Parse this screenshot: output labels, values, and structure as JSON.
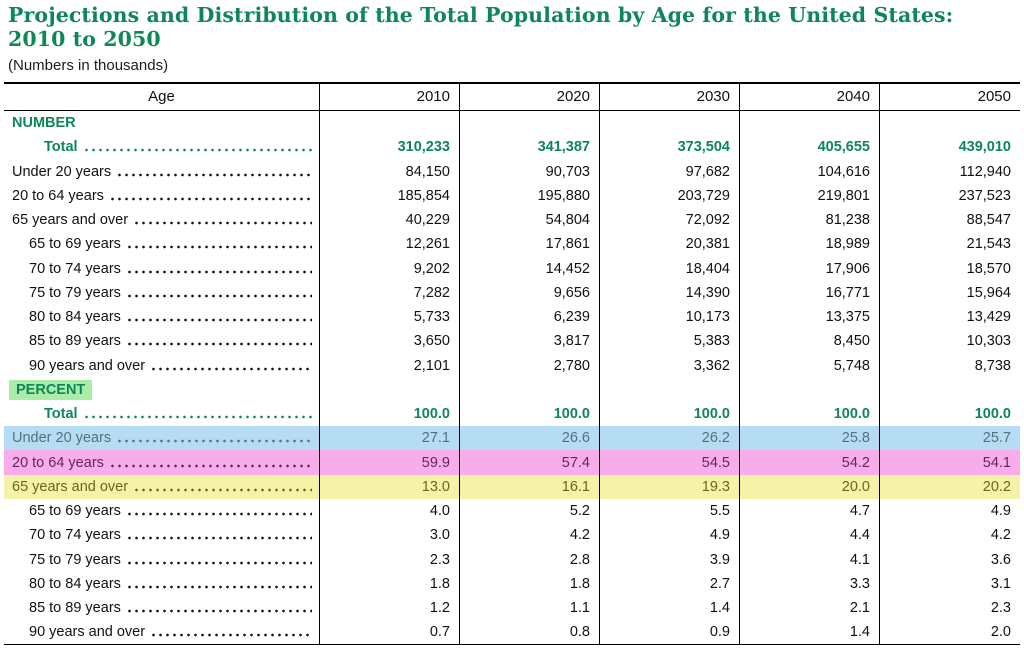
{
  "page": {
    "title_line1": "Projections and Distribution of the Total Population by Age for the United States:",
    "title_line2": "2010 to 2050",
    "subtitle": "(Numbers in thousands)"
  },
  "colors": {
    "green": "#0e8657",
    "band-green": "#a9eda9",
    "band-blue": "#b5dcf3",
    "band-pink": "#f9aceb",
    "band-yellow": "#f6f2a7",
    "text-blue": "#54707e",
    "text-pink": "#6e2160",
    "text-yellow": "#68671e",
    "text-body": "#111111",
    "border": "#000000"
  },
  "table": {
    "columns": [
      "Age",
      "2010",
      "2020",
      "2030",
      "2040",
      "2050"
    ],
    "rows": [
      {
        "label": "NUMBER",
        "style": "section",
        "values": []
      },
      {
        "label": "Total",
        "style": "total",
        "values": [
          "310,233",
          "341,387",
          "373,504",
          "405,655",
          "439,010"
        ]
      },
      {
        "label": "Under 20 years",
        "style": "top",
        "values": [
          "84,150",
          "90,703",
          "97,682",
          "104,616",
          "112,940"
        ]
      },
      {
        "label": "20 to 64 years",
        "style": "top",
        "values": [
          "185,854",
          "195,880",
          "203,729",
          "219,801",
          "237,523"
        ]
      },
      {
        "label": "65 years and over",
        "style": "top",
        "values": [
          "40,229",
          "54,804",
          "72,092",
          "81,238",
          "88,547"
        ]
      },
      {
        "label": "65 to 69 years",
        "style": "sub",
        "values": [
          "12,261",
          "17,861",
          "20,381",
          "18,989",
          "21,543"
        ]
      },
      {
        "label": "70 to 74 years",
        "style": "sub",
        "values": [
          "9,202",
          "14,452",
          "18,404",
          "17,906",
          "18,570"
        ]
      },
      {
        "label": "75 to 79 years",
        "style": "sub",
        "values": [
          "7,282",
          "9,656",
          "14,390",
          "16,771",
          "15,964"
        ]
      },
      {
        "label": "80 to 84 years",
        "style": "sub",
        "values": [
          "5,733",
          "6,239",
          "10,173",
          "13,375",
          "13,429"
        ]
      },
      {
        "label": "85 to 89 years",
        "style": "sub",
        "values": [
          "3,650",
          "3,817",
          "5,383",
          "8,450",
          "10,303"
        ]
      },
      {
        "label": "90 years and over",
        "style": "sub",
        "values": [
          "2,101",
          "2,780",
          "3,362",
          "5,748",
          "8,738"
        ]
      },
      {
        "label": "PERCENT",
        "style": "section",
        "label_highlight": true,
        "values": []
      },
      {
        "label": "Total",
        "style": "total",
        "values": [
          "100.0",
          "100.0",
          "100.0",
          "100.0",
          "100.0"
        ]
      },
      {
        "label": "Under 20 years",
        "style": "top",
        "highlight": "blue",
        "values": [
          "27.1",
          "26.6",
          "26.2",
          "25.8",
          "25.7"
        ]
      },
      {
        "label": "20 to 64 years",
        "style": "top",
        "highlight": "pink",
        "values": [
          "59.9",
          "57.4",
          "54.5",
          "54.2",
          "54.1"
        ]
      },
      {
        "label": "65 years and over",
        "style": "top",
        "highlight": "yellow",
        "values": [
          "13.0",
          "16.1",
          "19.3",
          "20.0",
          "20.2"
        ]
      },
      {
        "label": "65 to 69 years",
        "style": "sub",
        "values": [
          "4.0",
          "5.2",
          "5.5",
          "4.7",
          "4.9"
        ]
      },
      {
        "label": "70 to 74 years",
        "style": "sub",
        "values": [
          "3.0",
          "4.2",
          "4.9",
          "4.4",
          "4.2"
        ]
      },
      {
        "label": "75 to 79 years",
        "style": "sub",
        "values": [
          "2.3",
          "2.8",
          "3.9",
          "4.1",
          "3.6"
        ]
      },
      {
        "label": "80 to 84 years",
        "style": "sub",
        "values": [
          "1.8",
          "1.8",
          "2.7",
          "3.3",
          "3.1"
        ]
      },
      {
        "label": "85 to 89 years",
        "style": "sub",
        "values": [
          "1.2",
          "1.1",
          "1.4",
          "2.1",
          "2.3"
        ]
      },
      {
        "label": "90 years and over",
        "style": "sub",
        "values": [
          "0.7",
          "0.8",
          "0.9",
          "1.4",
          "2.0"
        ]
      }
    ]
  }
}
